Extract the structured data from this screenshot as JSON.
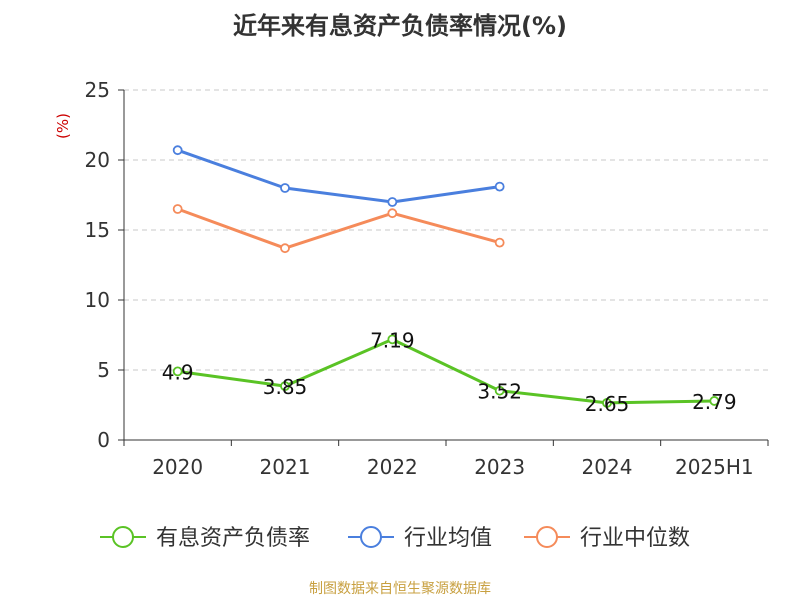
{
  "title": "近年来有息资产负债率情况(%)",
  "source": "制图数据来自恒生聚源数据库",
  "chart_data": {
    "type": "line",
    "title": "近年来有息资产负债率情况(%)",
    "ylabel": "(%)",
    "xlabel": "",
    "categories": [
      "2020",
      "2021",
      "2022",
      "2023",
      "2024",
      "2025H1"
    ],
    "ylim": [
      0,
      25
    ],
    "yticks": [
      0,
      5,
      10,
      15,
      20,
      25
    ],
    "grid": true,
    "legend_position": "bottom",
    "series": [
      {
        "name": "有息资产负债率",
        "values": [
          4.9,
          3.85,
          7.19,
          3.52,
          2.65,
          2.79
        ],
        "color": "#5ac325",
        "labels": [
          "4.9",
          "3.85",
          "7.19",
          "3.52",
          "2.65",
          "2.79"
        ]
      },
      {
        "name": "行业均值",
        "values": [
          20.7,
          18.0,
          17.0,
          18.1,
          null,
          null
        ],
        "color": "#4a7fde"
      },
      {
        "name": "行业中位数",
        "values": [
          16.5,
          13.7,
          16.2,
          14.1,
          null,
          null
        ],
        "color": "#f58b5a"
      }
    ]
  }
}
